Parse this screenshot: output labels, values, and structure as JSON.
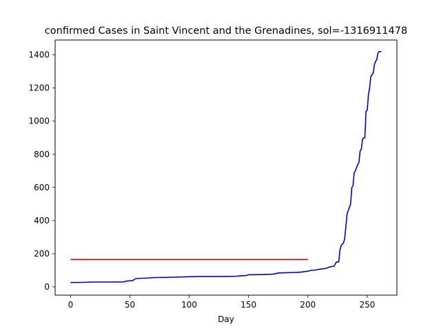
{
  "chart_data": {
    "type": "line",
    "title": "confirmed Cases in Saint Vincent and the Grenadines, sol=-1316911478",
    "xlabel": "Day",
    "ylabel": "",
    "xlim": [
      -13,
      275
    ],
    "ylim": [
      -50,
      1490
    ],
    "x_ticks": [
      0,
      50,
      100,
      150,
      200,
      250
    ],
    "y_ticks": [
      0,
      200,
      400,
      600,
      800,
      1000,
      1200,
      1400
    ],
    "grid": false,
    "legend": "none",
    "series": [
      {
        "color": "#0000cc",
        "points": [
          [
            0,
            26
          ],
          [
            10,
            27
          ],
          [
            20,
            29
          ],
          [
            30,
            29
          ],
          [
            45,
            30
          ],
          [
            47,
            35
          ],
          [
            52,
            37
          ],
          [
            55,
            50
          ],
          [
            60,
            52
          ],
          [
            65,
            53
          ],
          [
            70,
            56
          ],
          [
            80,
            57
          ],
          [
            90,
            59
          ],
          [
            100,
            61
          ],
          [
            107,
            63
          ],
          [
            120,
            63
          ],
          [
            130,
            63
          ],
          [
            140,
            64
          ],
          [
            143,
            66
          ],
          [
            148,
            68
          ],
          [
            150,
            73
          ],
          [
            160,
            74
          ],
          [
            170,
            76
          ],
          [
            173,
            80
          ],
          [
            175,
            84
          ],
          [
            185,
            86
          ],
          [
            190,
            87
          ],
          [
            195,
            90
          ],
          [
            200,
            95
          ],
          [
            203,
            100
          ],
          [
            207,
            102
          ],
          [
            210,
            107
          ],
          [
            215,
            111
          ],
          [
            218,
            120
          ],
          [
            222,
            125
          ],
          [
            224,
            150
          ],
          [
            226,
            150
          ],
          [
            227,
            220
          ],
          [
            228,
            250
          ],
          [
            230,
            265
          ],
          [
            231,
            290
          ],
          [
            233,
            440
          ],
          [
            234,
            460
          ],
          [
            235,
            480
          ],
          [
            236,
            500
          ],
          [
            237,
            600
          ],
          [
            238,
            610
          ],
          [
            239,
            690
          ],
          [
            240,
            700
          ],
          [
            241,
            720
          ],
          [
            242,
            740
          ],
          [
            243,
            750
          ],
          [
            244,
            820
          ],
          [
            245,
            830
          ],
          [
            246,
            890
          ],
          [
            247,
            900
          ],
          [
            248,
            900
          ],
          [
            249,
            1060
          ],
          [
            250,
            1065
          ],
          [
            251,
            1160
          ],
          [
            252,
            1200
          ],
          [
            253,
            1270
          ],
          [
            254,
            1280
          ],
          [
            255,
            1290
          ],
          [
            256,
            1340
          ],
          [
            257,
            1360
          ],
          [
            258,
            1370
          ],
          [
            259,
            1410
          ],
          [
            260,
            1420
          ],
          [
            262,
            1420
          ]
        ]
      },
      {
        "color": "#dd0000",
        "points": [
          [
            0,
            165
          ],
          [
            200,
            165
          ]
        ]
      }
    ]
  }
}
